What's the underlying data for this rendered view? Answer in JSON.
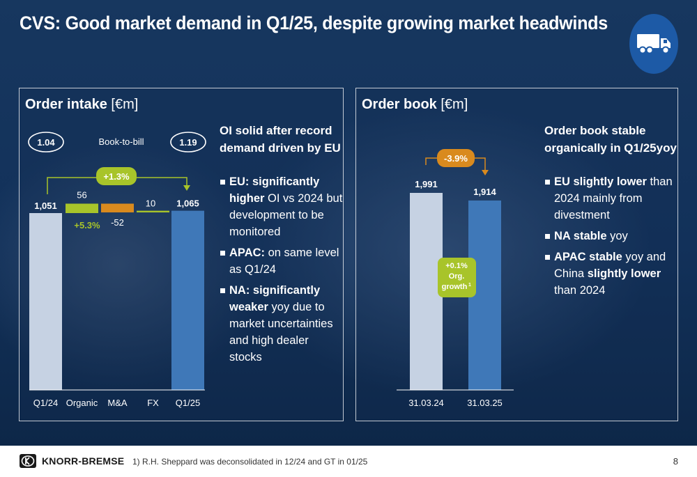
{
  "title": "CVS: Good market demand in Q1/25, despite growing market headwinds",
  "icons": {
    "badge": "truck-icon",
    "logo": "knorr-bremse-logo"
  },
  "colors": {
    "light_bar": "#c6d2e3",
    "dark_bar": "#3f78b8",
    "green": "#a8c42a",
    "orange": "#d98a1e",
    "badge": "#1d5aa6"
  },
  "left": {
    "title_bold": "Order intake",
    "title_unit": "[€m]",
    "book_to_bill_label": "Book-to-bill",
    "book_to_bill_start": "1.04",
    "book_to_bill_end": "1.19",
    "change_badge": "+1.3%",
    "organic_pct": "+5.3%",
    "heading": "OI solid after record demand driven by EU",
    "bullets": [
      {
        "bold": "EU: significantly higher",
        "text": " OI vs 2024 but development to be monitored"
      },
      {
        "bold": "APAC:",
        "text": " on same level as Q1/24"
      },
      {
        "bold": "NA: significantly weaker",
        "text": " yoy due to market uncertainties and high dealer stocks"
      }
    ]
  },
  "right": {
    "title_bold": "Order book",
    "title_unit": "[€m]",
    "change_badge": "-3.9%",
    "org_growth_lines": [
      "+0.1%",
      "Org.",
      "growth"
    ],
    "org_growth_sup": "1",
    "heading": "Order book stable organically in Q1/25yoy",
    "bullets": [
      {
        "bold": "EU slightly lower",
        "text": " than 2024 mainly from divestment"
      },
      {
        "bold": "NA stable",
        "text": " yoy"
      },
      {
        "bold": "APAC stable",
        "text": " yoy and China ",
        "bold2": "slightly lower",
        "text2": " than 2024"
      }
    ]
  },
  "chart_data": [
    {
      "type": "bar",
      "subtype": "waterfall",
      "title": "Order intake [€m]",
      "categories": [
        "Q1/24",
        "Organic",
        "M&A",
        "FX",
        "Q1/25"
      ],
      "values": [
        1051,
        56,
        -52,
        10,
        1065
      ],
      "labels": [
        "1,051",
        "56",
        "-52",
        "10",
        "1,065"
      ],
      "bar_kinds": [
        "total",
        "delta",
        "delta",
        "delta",
        "total"
      ]
    },
    {
      "type": "bar",
      "title": "Order book [€m]",
      "categories": [
        "31.03.24",
        "31.03.25"
      ],
      "values": [
        1991,
        1914
      ],
      "labels": [
        "1,991",
        "1,914"
      ]
    }
  ],
  "footer": {
    "brand": "KNORR-BREMSE",
    "footnote": "1) R.H. Sheppard was deconsolidated in 12/24 and GT in 01/25",
    "page_number": "8"
  }
}
